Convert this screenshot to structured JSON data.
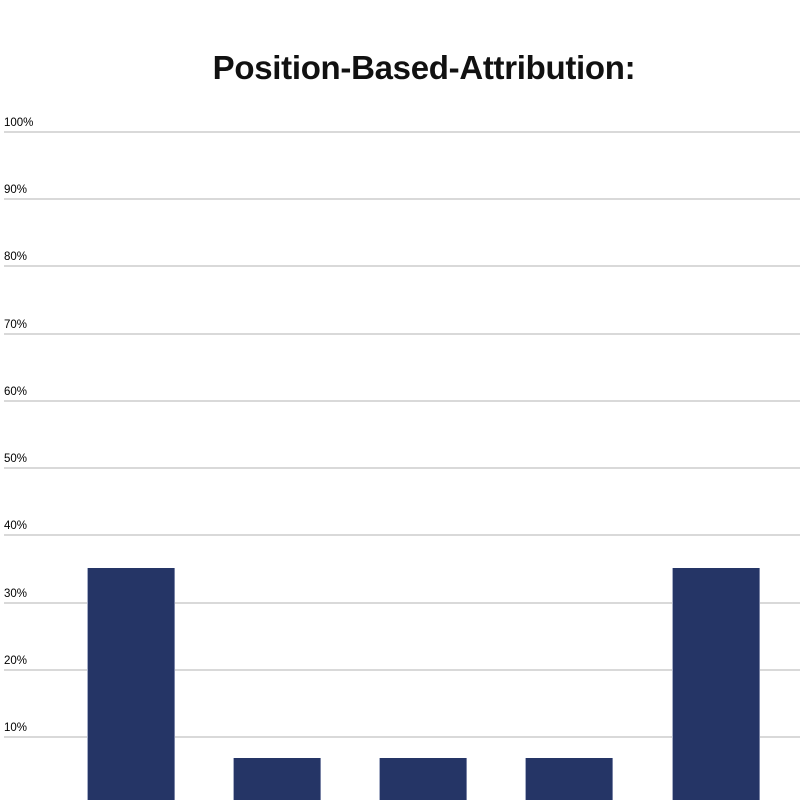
{
  "chart": {
    "title": "Position-Based-Attribution:"
  },
  "chart_data": {
    "type": "bar",
    "title": "Position-Based-Attribution:",
    "categories": [
      "",
      "",
      "",
      "",
      ""
    ],
    "values": [
      35,
      6.7,
      6.7,
      6.7,
      35
    ],
    "xlabel": "",
    "ylabel": "",
    "ylim": [
      0,
      100
    ],
    "y_tick_step": 10,
    "y_ticks_visible": [
      "100%",
      "90%",
      "80%",
      "70%",
      "60%",
      "50%",
      "40%",
      "30%",
      "20%",
      "10%"
    ],
    "grid": "horizontal",
    "legend": "none",
    "bar_color": "#253566",
    "gridline_color": "#d9d9d9",
    "title_color": "#111111",
    "tick_label_color": "#000000",
    "background_color": "#ffffff",
    "notes_axis": "x-axis category labels and 0% baseline are cropped off the bottom edge of the image"
  }
}
